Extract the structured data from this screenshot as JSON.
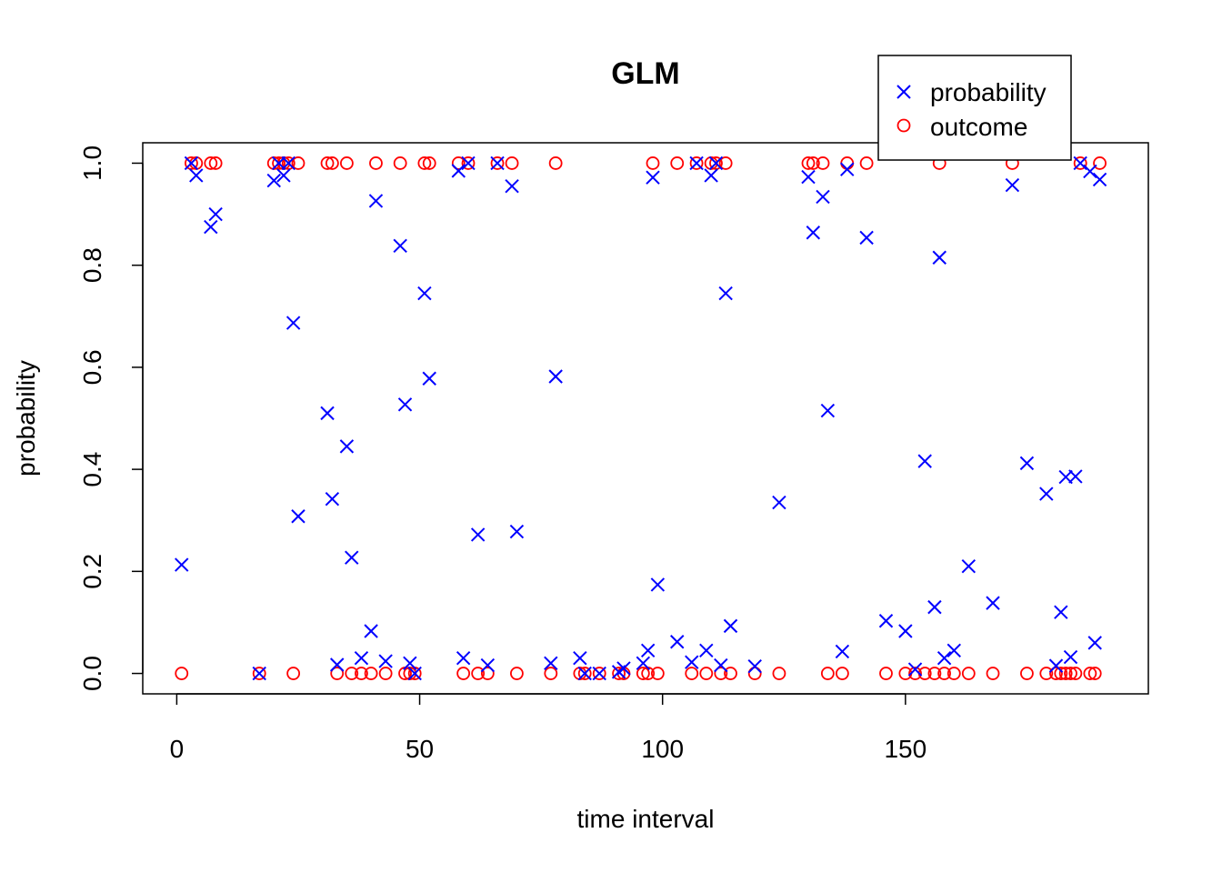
{
  "chart_data": {
    "type": "scatter",
    "title": "GLM",
    "xlabel": "time interval",
    "ylabel": "probability",
    "xlim": [
      -7,
      200
    ],
    "ylim": [
      -0.04,
      1.04
    ],
    "x_ticks": [
      0,
      50,
      100,
      150
    ],
    "y_ticks": [
      0.0,
      0.2,
      0.4,
      0.6,
      0.8,
      1.0
    ],
    "x_tick_labels": [
      "0",
      "50",
      "100",
      "150"
    ],
    "y_tick_labels": [
      "0.0",
      "0.2",
      "0.4",
      "0.6",
      "0.8",
      "1.0"
    ],
    "grid": false,
    "legend_position": "top-right",
    "series": [
      {
        "name": "probability",
        "marker": "x",
        "color": "#0000FF",
        "points": [
          [
            1,
            0.213
          ],
          [
            3,
            1.0
          ],
          [
            4,
            0.976
          ],
          [
            7,
            0.875
          ],
          [
            8,
            0.9
          ],
          [
            17,
            0.0
          ],
          [
            20,
            0.966
          ],
          [
            21,
            1.0
          ],
          [
            22,
            0.976
          ],
          [
            23,
            1.0
          ],
          [
            24,
            0.687
          ],
          [
            25,
            0.308
          ],
          [
            31,
            0.51
          ],
          [
            32,
            0.342
          ],
          [
            33,
            0.017
          ],
          [
            35,
            0.445
          ],
          [
            36,
            0.227
          ],
          [
            38,
            0.03
          ],
          [
            40,
            0.083
          ],
          [
            41,
            0.926
          ],
          [
            43,
            0.024
          ],
          [
            46,
            0.838
          ],
          [
            47,
            0.527
          ],
          [
            48,
            0.02
          ],
          [
            49,
            0.0
          ],
          [
            51,
            0.745
          ],
          [
            52,
            0.578
          ],
          [
            58,
            0.985
          ],
          [
            59,
            0.03
          ],
          [
            60,
            1.0
          ],
          [
            62,
            0.272
          ],
          [
            64,
            0.016
          ],
          [
            66,
            1.0
          ],
          [
            69,
            0.955
          ],
          [
            70,
            0.278
          ],
          [
            77,
            0.02
          ],
          [
            78,
            0.582
          ],
          [
            83,
            0.03
          ],
          [
            84,
            0.0
          ],
          [
            87,
            0.0
          ],
          [
            91,
            0.003
          ],
          [
            92,
            0.01
          ],
          [
            96,
            0.02
          ],
          [
            97,
            0.045
          ],
          [
            98,
            0.972
          ],
          [
            99,
            0.174
          ],
          [
            103,
            0.062
          ],
          [
            106,
            0.022
          ],
          [
            107,
            1.0
          ],
          [
            109,
            0.045
          ],
          [
            110,
            0.976
          ],
          [
            111,
            1.0
          ],
          [
            112,
            0.016
          ],
          [
            113,
            0.745
          ],
          [
            114,
            0.093
          ],
          [
            119,
            0.014
          ],
          [
            124,
            0.335
          ],
          [
            130,
            0.973
          ],
          [
            131,
            0.864
          ],
          [
            133,
            0.934
          ],
          [
            134,
            0.515
          ],
          [
            137,
            0.043
          ],
          [
            138,
            0.988
          ],
          [
            142,
            0.854
          ],
          [
            146,
            0.103
          ],
          [
            150,
            0.083
          ],
          [
            152,
            0.008
          ],
          [
            154,
            0.416
          ],
          [
            156,
            0.13
          ],
          [
            157,
            0.815
          ],
          [
            158,
            0.03
          ],
          [
            160,
            0.045
          ],
          [
            163,
            0.21
          ],
          [
            168,
            0.138
          ],
          [
            172,
            0.957
          ],
          [
            175,
            0.412
          ],
          [
            179,
            0.352
          ],
          [
            181,
            0.015
          ],
          [
            182,
            0.12
          ],
          [
            183,
            0.385
          ],
          [
            184,
            0.032
          ],
          [
            185,
            0.386
          ],
          [
            186,
            1.0
          ],
          [
            188,
            0.984
          ],
          [
            189,
            0.06
          ],
          [
            190,
            0.968
          ]
        ]
      },
      {
        "name": "outcome",
        "marker": "o",
        "color": "#FF0000",
        "points": [
          [
            1,
            0
          ],
          [
            3,
            1
          ],
          [
            4,
            1
          ],
          [
            7,
            1
          ],
          [
            8,
            1
          ],
          [
            17,
            0
          ],
          [
            20,
            1
          ],
          [
            21,
            1
          ],
          [
            22,
            1
          ],
          [
            23,
            1
          ],
          [
            24,
            0
          ],
          [
            25,
            1
          ],
          [
            31,
            1
          ],
          [
            32,
            1
          ],
          [
            33,
            0
          ],
          [
            35,
            1
          ],
          [
            36,
            0
          ],
          [
            38,
            0
          ],
          [
            40,
            0
          ],
          [
            41,
            1
          ],
          [
            43,
            0
          ],
          [
            46,
            1
          ],
          [
            47,
            0
          ],
          [
            48,
            0
          ],
          [
            49,
            0
          ],
          [
            51,
            1
          ],
          [
            52,
            1
          ],
          [
            58,
            1
          ],
          [
            59,
            0
          ],
          [
            60,
            1
          ],
          [
            62,
            0
          ],
          [
            64,
            0
          ],
          [
            66,
            1
          ],
          [
            69,
            1
          ],
          [
            70,
            0
          ],
          [
            77,
            0
          ],
          [
            78,
            1
          ],
          [
            83,
            0
          ],
          [
            84,
            0
          ],
          [
            87,
            0
          ],
          [
            91,
            0
          ],
          [
            92,
            0
          ],
          [
            96,
            0
          ],
          [
            97,
            0
          ],
          [
            98,
            1
          ],
          [
            99,
            0
          ],
          [
            103,
            1
          ],
          [
            106,
            0
          ],
          [
            107,
            1
          ],
          [
            109,
            0
          ],
          [
            110,
            1
          ],
          [
            111,
            1
          ],
          [
            112,
            0
          ],
          [
            113,
            1
          ],
          [
            114,
            0
          ],
          [
            119,
            0
          ],
          [
            124,
            0
          ],
          [
            130,
            1
          ],
          [
            131,
            1
          ],
          [
            133,
            1
          ],
          [
            134,
            0
          ],
          [
            137,
            0
          ],
          [
            138,
            1
          ],
          [
            142,
            1
          ],
          [
            146,
            0
          ],
          [
            150,
            0
          ],
          [
            152,
            0
          ],
          [
            154,
            0
          ],
          [
            156,
            0
          ],
          [
            157,
            1
          ],
          [
            158,
            0
          ],
          [
            160,
            0
          ],
          [
            163,
            0
          ],
          [
            168,
            0
          ],
          [
            172,
            1
          ],
          [
            175,
            0
          ],
          [
            179,
            0
          ],
          [
            181,
            0
          ],
          [
            182,
            0
          ],
          [
            183,
            0
          ],
          [
            184,
            0
          ],
          [
            185,
            0
          ],
          [
            186,
            1
          ],
          [
            188,
            0
          ],
          [
            189,
            0
          ],
          [
            190,
            1
          ]
        ]
      }
    ]
  }
}
